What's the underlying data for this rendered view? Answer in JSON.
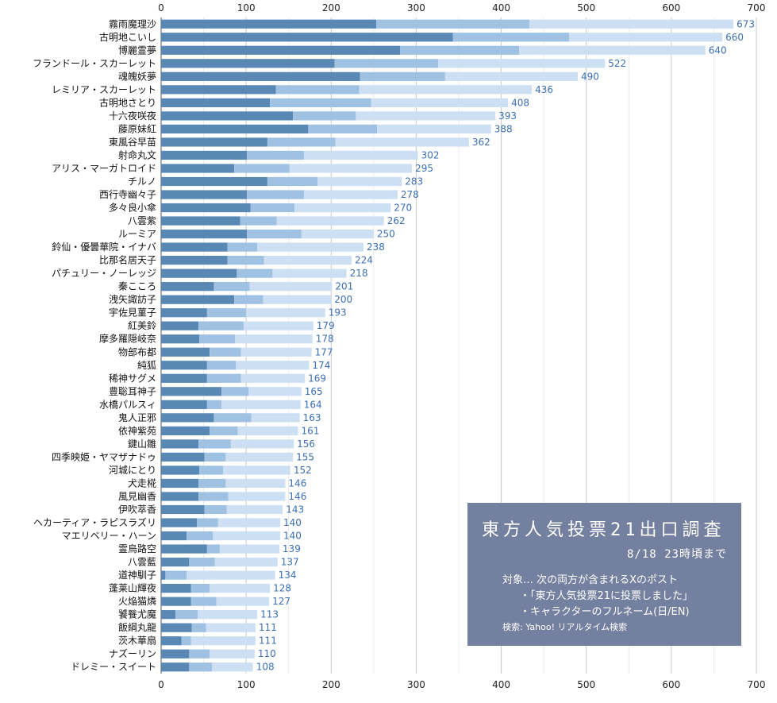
{
  "chart_data": {
    "type": "bar",
    "orientation": "horizontal",
    "stacked": true,
    "xlim": [
      0,
      700
    ],
    "x_ticks": [
      "0",
      "100",
      "200",
      "300",
      "400",
      "500",
      "600",
      "700"
    ],
    "grid": true,
    "colors": {
      "segment1": "#5a88b4",
      "segment2": "#9fc1e2",
      "segment3": "#cddff2",
      "value_label": "#3a6fb5",
      "grid": "#c8c8c8"
    },
    "categories": [
      "霧雨魔理沙",
      "古明地こいし",
      "博麗霊夢",
      "フランドール・スカーレット",
      "魂魄妖夢",
      "レミリア・スカーレット",
      "古明地さとり",
      "十六夜咲夜",
      "藤原妹紅",
      "東風谷早苗",
      "射命丸文",
      "アリス・マーガトロイド",
      "チルノ",
      "西行寺幽々子",
      "多々良小傘",
      "八雲紫",
      "ルーミア",
      "鈴仙・優曇華院・イナバ",
      "比那名居天子",
      "パチュリー・ノーレッジ",
      "秦こころ",
      "洩矢諏訪子",
      "宇佐見菫子",
      "紅美鈴",
      "摩多羅隠岐奈",
      "物部布都",
      "純狐",
      "稀神サグメ",
      "豊聡耳神子",
      "水橋パルスィ",
      "鬼人正邪",
      "依神紫苑",
      "鍵山雛",
      "四季映姫・ヤマザナドゥ",
      "河城にとり",
      "犬走椛",
      "風見幽香",
      "伊吹萃香",
      "ヘカーティア・ラピスラズリ",
      "マエリベリー・ハーン",
      "霊烏路空",
      "八雲藍",
      "道神馴子",
      "蓬莱山輝夜",
      "火焔猫燐",
      "饕餮尤魔",
      "飯綱丸龍",
      "茨木華扇",
      "ナズーリン",
      "ドレミー・スイート"
    ],
    "totals": [
      673,
      660,
      640,
      522,
      490,
      436,
      408,
      393,
      388,
      362,
      302,
      295,
      283,
      278,
      270,
      262,
      250,
      238,
      224,
      218,
      201,
      200,
      193,
      179,
      178,
      177,
      174,
      169,
      165,
      164,
      163,
      161,
      156,
      155,
      152,
      146,
      146,
      143,
      140,
      140,
      139,
      137,
      134,
      128,
      127,
      113,
      111,
      111,
      110,
      108
    ],
    "series": [
      {
        "values": [
          253,
          343,
          281,
          204,
          234,
          135,
          128,
          155,
          173,
          125,
          101,
          86,
          125,
          101,
          105,
          93,
          101,
          78,
          78,
          89,
          62,
          86,
          54,
          44,
          45,
          57,
          54,
          54,
          71,
          54,
          62,
          57,
          44,
          51,
          45,
          44,
          44,
          51,
          42,
          30,
          54,
          33,
          5,
          35,
          35,
          17,
          36,
          24,
          33,
          33
        ]
      },
      {
        "values": [
          180,
          137,
          140,
          122,
          100,
          98,
          119,
          74,
          81,
          80,
          67,
          65,
          59,
          67,
          52,
          43,
          64,
          35,
          43,
          42,
          42,
          34,
          46,
          53,
          42,
          37,
          34,
          40,
          32,
          17,
          44,
          33,
          38,
          25,
          28,
          32,
          35,
          26,
          25,
          31,
          15,
          30,
          25,
          22,
          30,
          26,
          17,
          11,
          24,
          27
        ]
      },
      {
        "values": [
          240,
          180,
          219,
          196,
          156,
          203,
          161,
          164,
          134,
          157,
          134,
          144,
          99,
          110,
          113,
          126,
          85,
          125,
          103,
          87,
          97,
          80,
          93,
          82,
          91,
          83,
          86,
          75,
          62,
          93,
          57,
          71,
          74,
          79,
          79,
          70,
          67,
          66,
          73,
          79,
          70,
          74,
          104,
          71,
          62,
          70,
          58,
          76,
          53,
          48
        ]
      }
    ]
  },
  "info_box": {
    "title": "東方人気投票21出口調査",
    "date": "8/18 23時頃まで",
    "line1": "対象… 次の両方が含まれるXのポスト",
    "line2": "・「東方人気投票21に投票しました」",
    "line3": "・キャラクターのフルネーム(日/EN)",
    "source": "検索: Yahoo! リアルタイム検索"
  }
}
